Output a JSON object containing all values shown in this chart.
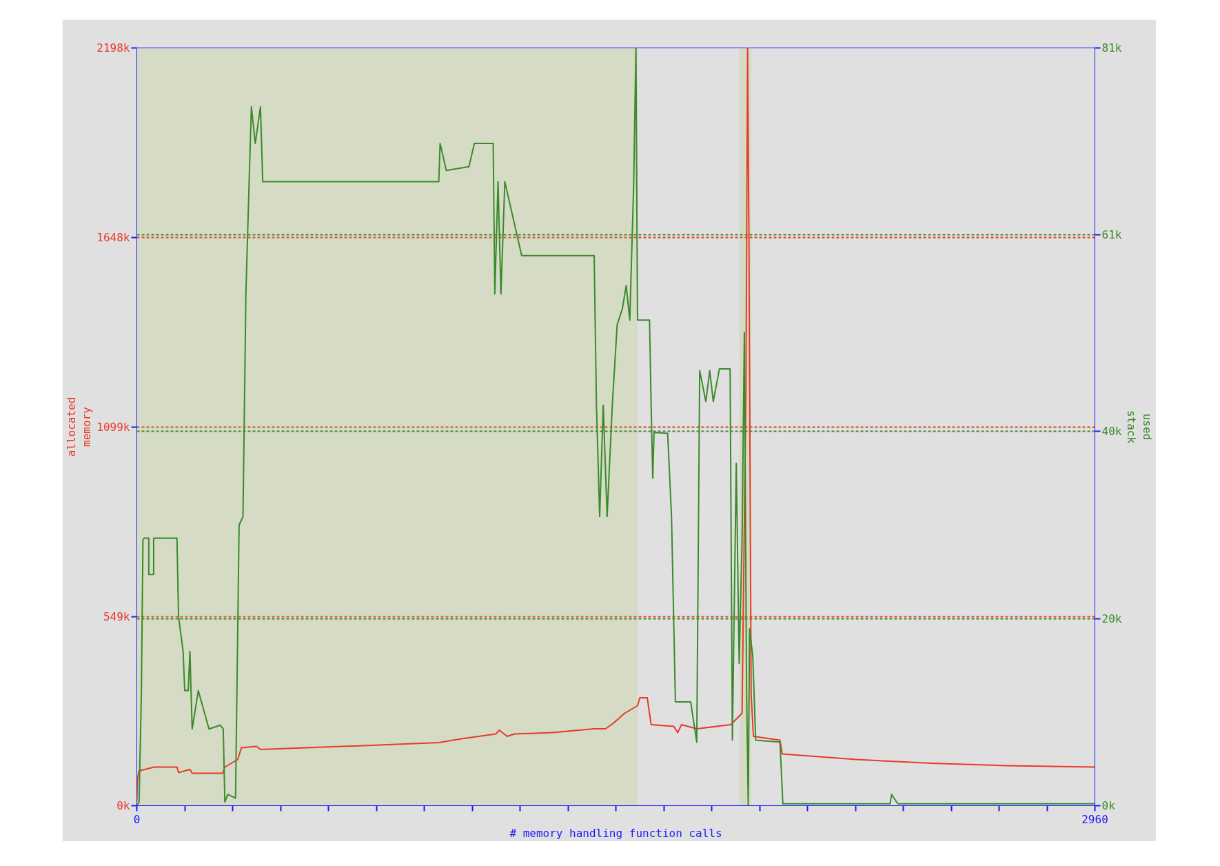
{
  "chart_data": {
    "type": "line",
    "xlabel": "# memory handling function calls",
    "ylabel": "allocated\nmemory",
    "y2label": "used\nstack",
    "xlim": [
      0,
      2960
    ],
    "xticks": [
      0,
      {
        "value": 148,
        "label": null
      },
      {
        "value": 296,
        "label": null
      },
      {
        "value": 444,
        "label": null
      },
      {
        "value": 592,
        "label": null
      },
      {
        "value": 740,
        "label": null
      },
      {
        "value": 888,
        "label": null
      },
      {
        "value": 1036,
        "label": null
      },
      {
        "value": 1184,
        "label": null
      },
      {
        "value": 1332,
        "label": null
      },
      {
        "value": 1480,
        "label": null
      },
      {
        "value": 1628,
        "label": null
      },
      {
        "value": 1776,
        "label": null
      },
      {
        "value": 1924,
        "label": null
      },
      {
        "value": 2072,
        "label": null
      },
      {
        "value": 2220,
        "label": null
      },
      {
        "value": 2368,
        "label": null
      },
      {
        "value": 2516,
        "label": null
      },
      {
        "value": 2664,
        "label": null
      },
      {
        "value": 2812,
        "label": null
      },
      2960
    ],
    "ylim": [
      0,
      2198
    ],
    "yticks": [
      {
        "value": 0,
        "label": "0k"
      },
      {
        "value": 549,
        "label": "549k"
      },
      {
        "value": 1099,
        "label": "1099k"
      },
      {
        "value": 1648,
        "label": "1648k"
      },
      {
        "value": 2198,
        "label": "2198k"
      }
    ],
    "y2lim": [
      0,
      81
    ],
    "y2ticks": [
      {
        "value": 0,
        "label": "0k"
      },
      {
        "value": 20,
        "label": "20k"
      },
      {
        "value": 40,
        "label": "40k"
      },
      {
        "value": 61,
        "label": "61k"
      },
      {
        "value": 81,
        "label": "81k"
      }
    ],
    "grid": "y",
    "bands": [
      {
        "axis": "x",
        "from": 0,
        "to": 1547,
        "color": "#a8c850"
      },
      {
        "axis": "x",
        "from": 1862,
        "to": 1898,
        "color": "#a8c850"
      }
    ],
    "series": [
      {
        "color": "#e8392a",
        "x": [
          0,
          2,
          7,
          54,
          124,
          129,
          164,
          171,
          265,
          272,
          312,
          323,
          370,
          382,
          698,
          933,
          1003,
          1109,
          1120,
          1144,
          1167,
          1284,
          1413,
          1448,
          1472,
          1507,
          1547,
          1554,
          1577,
          1589,
          1659,
          1671,
          1683,
          1730,
          1835,
          1870,
          1882,
          1887,
          1891,
          1898,
          1905,
          1987,
          1994,
          2222,
          2456,
          2690,
          2960
        ],
        "values": [
          11,
          78,
          101,
          112,
          112,
          96,
          105,
          94,
          94,
          112,
          134,
          168,
          172,
          163,
          174,
          183,
          194,
          208,
          219,
          201,
          208,
          212,
          223,
          223,
          239,
          268,
          290,
          313,
          313,
          235,
          230,
          212,
          235,
          223,
          235,
          268,
          1217,
          2198,
          1664,
          324,
          201,
          190,
          150,
          134,
          123,
          116,
          112
        ]
      },
      {
        "color": "#3a8a2a",
        "axis": "y2",
        "x": [
          0,
          7,
          14,
          19,
          23,
          37,
          37,
          52,
          52,
          124,
          129,
          143,
          148,
          159,
          164,
          171,
          190,
          223,
          258,
          267,
          272,
          281,
          305,
          316,
          328,
          337,
          347,
          354,
          366,
          382,
          389,
          933,
          937,
          956,
          1026,
          1043,
          1101,
          1106,
          1116,
          1125,
          1137,
          1189,
          1413,
          1420,
          1430,
          1441,
          1453,
          1469,
          1484,
          1500,
          1512,
          1523,
          1535,
          1542,
          1547,
          1584,
          1589,
          1594,
          1598,
          1640,
          1652,
          1664,
          1711,
          1730,
          1739,
          1758,
          1770,
          1781,
          1800,
          1833,
          1840,
          1852,
          1861,
          1870,
          1877,
          1884,
          1889,
          1893,
          1903,
          1912,
          1987,
          1996,
          2327,
          2332,
          2351,
          2960
        ],
        "values": [
          0,
          0.4,
          11.9,
          28.4,
          28.6,
          28.6,
          24.7,
          24.7,
          28.6,
          28.6,
          20.2,
          16.5,
          12.3,
          12.3,
          16.5,
          8.2,
          12.3,
          8.2,
          8.6,
          8.2,
          0.4,
          1.2,
          0.8,
          30.0,
          30.9,
          54.7,
          66.7,
          74.7,
          70.8,
          74.7,
          66.7,
          66.7,
          70.8,
          67.9,
          68.3,
          70.8,
          70.8,
          54.7,
          66.7,
          54.7,
          66.7,
          58.8,
          58.8,
          42.8,
          30.9,
          42.8,
          30.9,
          42.8,
          51.4,
          53.1,
          55.6,
          51.9,
          66.3,
          81,
          51.9,
          51.9,
          42.8,
          35.0,
          39.9,
          39.8,
          30.9,
          11.1,
          11.1,
          6.8,
          46.5,
          43.2,
          46.5,
          43.2,
          46.7,
          46.7,
          7.0,
          36.6,
          15.2,
          28.4,
          50.6,
          11.9,
          0,
          18.9,
          16.0,
          7.0,
          6.8,
          0.2,
          0.2,
          1.2,
          0.2,
          0.2
        ]
      }
    ]
  }
}
